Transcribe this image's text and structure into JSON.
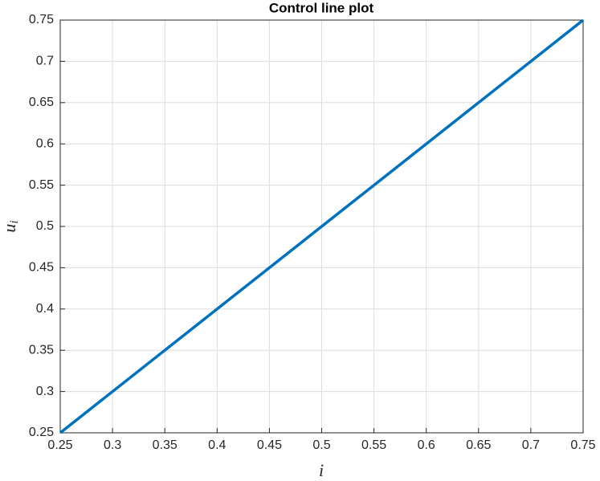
{
  "chart_data": {
    "type": "line",
    "title": "Control line plot",
    "xlabel": "i",
    "ylabel": "u",
    "ylabel_subscript": "i",
    "x": [
      0.25,
      0.75
    ],
    "series": [
      {
        "color": "#0072bd",
        "values": [
          0.25,
          0.75
        ]
      }
    ],
    "xlim": [
      0.25,
      0.75
    ],
    "ylim": [
      0.25,
      0.75
    ],
    "xticks": [
      0.25,
      0.3,
      0.35,
      0.4,
      0.45,
      0.5,
      0.55,
      0.6,
      0.65,
      0.7,
      0.75
    ],
    "yticks": [
      0.25,
      0.3,
      0.35,
      0.4,
      0.45,
      0.5,
      0.55,
      0.6,
      0.65,
      0.7,
      0.75
    ],
    "grid": true
  }
}
